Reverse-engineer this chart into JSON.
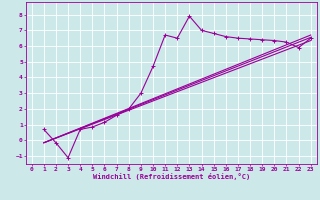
{
  "xlabel": "Windchill (Refroidissement éolien,°C)",
  "bg_color": "#cce8e8",
  "grid_color": "#ffffff",
  "line_color": "#990099",
  "xlim": [
    -0.5,
    23.5
  ],
  "ylim": [
    -1.5,
    8.8
  ],
  "xticks": [
    0,
    1,
    2,
    3,
    4,
    5,
    6,
    7,
    8,
    9,
    10,
    11,
    12,
    13,
    14,
    15,
    16,
    17,
    18,
    19,
    20,
    21,
    22,
    23
  ],
  "yticks": [
    -1,
    0,
    1,
    2,
    3,
    4,
    5,
    6,
    7,
    8
  ],
  "line1_x": [
    1,
    2,
    3,
    4,
    5,
    6,
    7,
    8,
    9,
    10,
    11,
    12,
    13,
    14,
    15,
    16,
    17,
    18,
    19,
    20,
    21,
    22,
    23
  ],
  "line1_y": [
    0.7,
    -0.15,
    -1.1,
    0.7,
    0.85,
    1.15,
    1.6,
    2.0,
    3.0,
    4.7,
    6.7,
    6.5,
    7.9,
    7.0,
    6.8,
    6.6,
    6.5,
    6.45,
    6.4,
    6.35,
    6.25,
    5.9,
    6.5
  ],
  "line2_x": [
    1,
    23
  ],
  "line2_y": [
    -0.15,
    6.55
  ],
  "line3_x": [
    1,
    23
  ],
  "line3_y": [
    -0.15,
    6.7
  ],
  "line4_x": [
    1,
    23
  ],
  "line4_y": [
    -0.15,
    6.35
  ]
}
